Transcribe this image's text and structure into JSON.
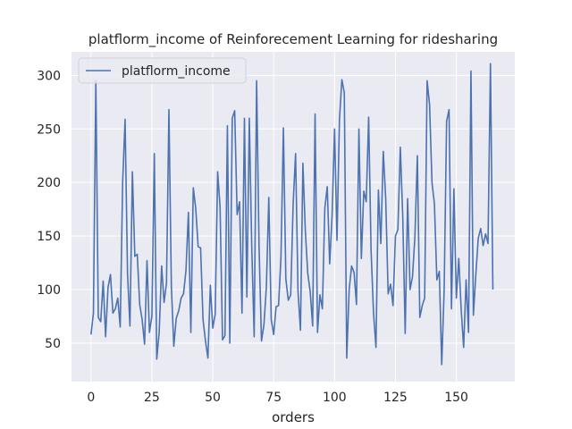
{
  "chart_data": {
    "type": "line",
    "title": "platflorm_income of Reinforecement Learning for ridesharing",
    "xlabel": "orders",
    "ylabel": "",
    "xlim": [
      -8,
      174
    ],
    "ylim": [
      14,
      322
    ],
    "xticks": [
      0,
      25,
      50,
      75,
      100,
      125,
      150
    ],
    "yticks": [
      50,
      100,
      150,
      200,
      250,
      300
    ],
    "grid": true,
    "legend": "top-left",
    "colors": {
      "background": "#eaeaf2",
      "grid": "#ffffff",
      "line": "#4c72b0"
    },
    "series": [
      {
        "name": "platflorm_income",
        "x": [
          0,
          1,
          2,
          3,
          4,
          5,
          6,
          7,
          8,
          9,
          10,
          11,
          12,
          13,
          14,
          15,
          16,
          17,
          18,
          19,
          20,
          21,
          22,
          23,
          24,
          25,
          26,
          27,
          28,
          29,
          30,
          31,
          32,
          33,
          34,
          35,
          36,
          37,
          38,
          39,
          40,
          41,
          42,
          43,
          44,
          45,
          46,
          47,
          48,
          49,
          50,
          51,
          52,
          53,
          54,
          55,
          56,
          57,
          58,
          59,
          60,
          61,
          62,
          63,
          64,
          65,
          66,
          67,
          68,
          69,
          70,
          71,
          72,
          73,
          74,
          75,
          76,
          77,
          78,
          79,
          80,
          81,
          82,
          83,
          84,
          85,
          86,
          87,
          88,
          89,
          90,
          91,
          92,
          93,
          94,
          95,
          96,
          97,
          98,
          99,
          100,
          101,
          102,
          103,
          104,
          105,
          106,
          107,
          108,
          109,
          110,
          111,
          112,
          113,
          114,
          115,
          116,
          117,
          118,
          119,
          120,
          121,
          122,
          123,
          124,
          125,
          126,
          127,
          128,
          129,
          130,
          131,
          132,
          133,
          134,
          135,
          136,
          137,
          138,
          139,
          140,
          141,
          142,
          143,
          144,
          145,
          146,
          147,
          148,
          149,
          150,
          151,
          152,
          153,
          154,
          155,
          156,
          157,
          158,
          159,
          160,
          161,
          162,
          163,
          164,
          165
        ],
        "values": [
          58,
          78,
          295,
          74,
          70,
          108,
          56,
          102,
          114,
          78,
          82,
          92,
          65,
          200,
          259,
          115,
          66,
          210,
          131,
          133,
          86,
          72,
          49,
          127,
          60,
          75,
          227,
          35,
          60,
          122,
          88,
          106,
          268,
          103,
          47,
          73,
          80,
          92,
          96,
          118,
          172,
          60,
          195,
          176,
          140,
          139,
          72,
          52,
          36,
          104,
          64,
          77,
          210,
          177,
          53,
          57,
          253,
          50,
          260,
          267,
          170,
          182,
          78,
          260,
          93,
          260,
          140,
          56,
          295,
          140,
          52,
          67,
          102,
          186,
          72,
          58,
          84,
          85,
          130,
          251,
          110,
          90,
          95,
          180,
          227,
          98,
          62,
          218,
          155,
          115,
          98,
          66,
          264,
          60,
          95,
          82,
          176,
          196,
          124,
          170,
          250,
          146,
          258,
          296,
          284,
          36,
          100,
          122,
          116,
          86,
          250,
          129,
          192,
          182,
          261,
          136,
          78,
          46,
          193,
          143,
          229,
          185,
          96,
          105,
          85,
          150,
          156,
          233,
          168,
          59,
          185,
          100,
          112,
          150,
          225,
          74,
          85,
          92,
          295,
          273,
          200,
          180,
          109,
          117,
          30,
          100,
          257,
          268,
          82,
          194,
          92,
          129,
          81,
          46,
          109,
          60,
          304,
          76,
          114,
          148,
          157,
          141,
          152,
          143,
          311,
          100
        ]
      }
    ]
  }
}
